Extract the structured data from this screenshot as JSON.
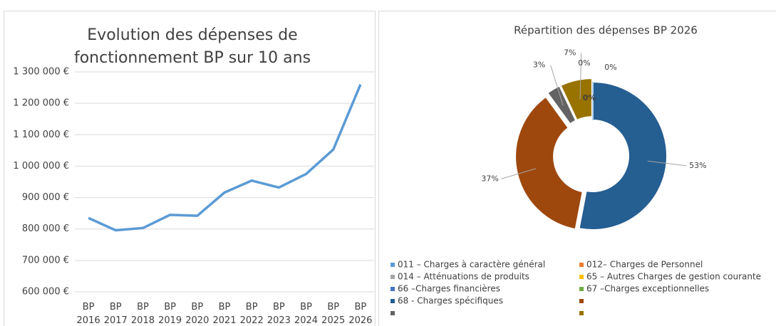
{
  "chart_data": [
    {
      "type": "line",
      "title": "Evolution des dépenses de fonctionnement BP sur 10 ans",
      "categories": [
        "BP 2016",
        "BP 2017",
        "BP 2018",
        "BP 2019",
        "BP 2020",
        "BP 2021",
        "BP 2022",
        "BP 2023",
        "BP 2024",
        "BP 2025",
        "BP 2026"
      ],
      "values": [
        835000,
        796000,
        803000,
        845000,
        842000,
        916000,
        954000,
        932000,
        975000,
        1053000,
        1260000
      ],
      "color": "#5b9bd5",
      "ylim": [
        600000,
        1300000
      ],
      "yticks": [
        {
          "value": 600000,
          "label": "600 000 €"
        },
        {
          "value": 700000,
          "label": "700 000 €"
        },
        {
          "value": 800000,
          "label": "800 000 €"
        },
        {
          "value": 900000,
          "label": "900 000 €"
        },
        {
          "value": 1000000,
          "label": "1 000 000 €"
        },
        {
          "value": 1100000,
          "label": "1 100 000 €"
        },
        {
          "value": 1200000,
          "label": "1 200 000 €"
        },
        {
          "value": 1300000,
          "label": "1 300 000 €"
        }
      ],
      "grid": true
    },
    {
      "type": "donut",
      "title": "Répartition des dépenses BP 2026",
      "values": [
        53,
        37,
        3,
        7,
        0,
        0,
        0
      ],
      "value_labels": [
        "53%",
        "37%",
        "3%",
        "7%",
        "0%",
        "0%",
        "0%"
      ],
      "colors": [
        "#255e91",
        "#9e480e",
        "#636363",
        "#997300",
        "#a5a5a5",
        "#ffc000",
        "#5b9bd5"
      ],
      "legend": [
        {
          "name": "011 – Charges à caractère général",
          "color": "#5b9bd5"
        },
        {
          "name": "012– Charges de Personnel",
          "color": "#ed7d31"
        },
        {
          "name": "014 – Atténuations de produits",
          "color": "#a5a5a5"
        },
        {
          "name": "65 – Autres Charges de gestion courante",
          "color": "#ffc000"
        },
        {
          "name": "66 –Charges financières",
          "color": "#4472c4"
        },
        {
          "name": "67 –Charges exceptionnelles",
          "color": "#70ad47"
        },
        {
          "name": "68 - Charges spécifiques",
          "color": "#255e91"
        },
        {
          "name": null,
          "color": "#9e480e"
        },
        {
          "name": null,
          "color": "#636363"
        },
        {
          "name": null,
          "color": "#997300"
        }
      ]
    }
  ]
}
